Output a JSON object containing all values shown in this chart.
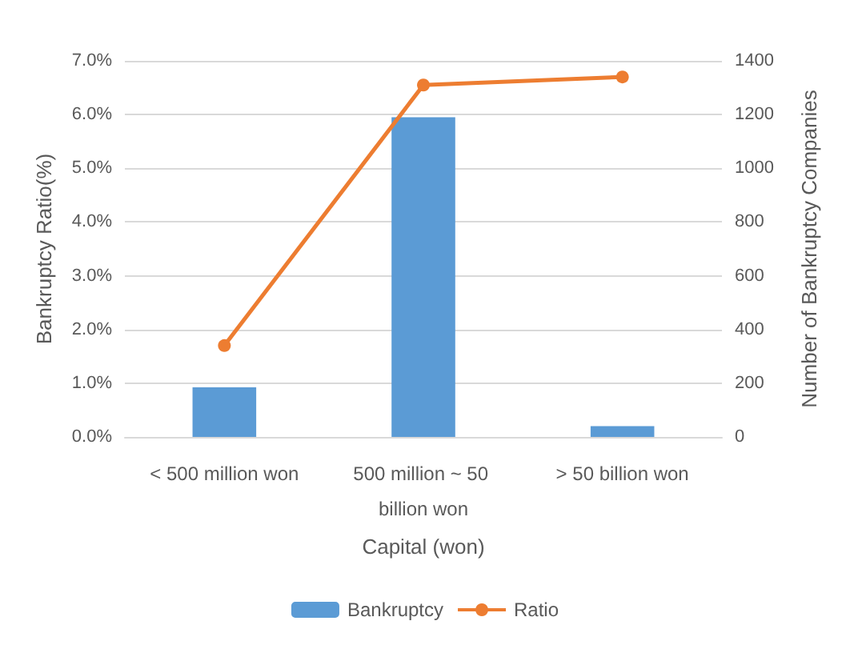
{
  "chart_data": {
    "type": "bar",
    "categories": [
      "< 500 million won",
      "500 million ~ 50 billion won",
      "> 50 billion won"
    ],
    "xlabel": "Capital (won)",
    "ylabel": "Bankruptcy Ratio(%)",
    "y2label": "Number of Bankruptcy Companies",
    "series": [
      {
        "name": "Bankruptcy",
        "axis": "y2",
        "color": "#5b9bd5",
        "values": [
          185,
          1190,
          40
        ]
      },
      {
        "name": "Ratio",
        "type": "line",
        "axis": "y",
        "color": "#ed7d31",
        "values": [
          1.7,
          6.55,
          6.7
        ]
      }
    ],
    "ylim": [
      0,
      7
    ],
    "yticks": [
      {
        "value": 0,
        "label": "0.0%"
      },
      {
        "value": 1,
        "label": "1.0%"
      },
      {
        "value": 2,
        "label": "2.0%"
      },
      {
        "value": 3,
        "label": "3.0%"
      },
      {
        "value": 4,
        "label": "4.0%"
      },
      {
        "value": 5,
        "label": "5.0%"
      },
      {
        "value": 6,
        "label": "6.0%"
      },
      {
        "value": 7,
        "label": "7.0%"
      }
    ],
    "y2lim": [
      0,
      1400
    ],
    "y2ticks": [
      0,
      200,
      400,
      600,
      800,
      1000,
      1200,
      1400
    ],
    "grid": "y",
    "legend": "bottom",
    "marker": "circle"
  }
}
